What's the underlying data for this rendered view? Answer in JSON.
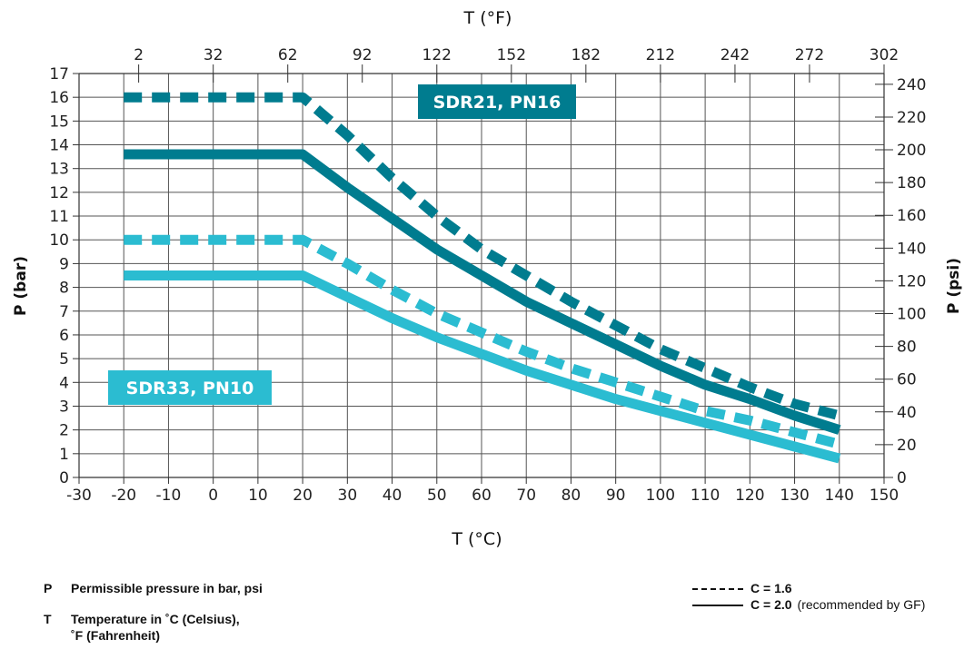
{
  "chart_data": {
    "type": "line",
    "top_axis_label": "T (°F)",
    "xlabel": "T (°C)",
    "ylabel": "P (bar)",
    "right_axis_label": "P (psi)",
    "xlim": [
      -30,
      150
    ],
    "ylim": [
      0,
      17
    ],
    "x_ticks": [
      "-30",
      "-20",
      "-10",
      "0",
      "10",
      "20",
      "30",
      "40",
      "50",
      "60",
      "70",
      "80",
      "90",
      "100",
      "110",
      "120",
      "130",
      "140",
      "150"
    ],
    "y_ticks": [
      "0",
      "1",
      "2",
      "3",
      "4",
      "5",
      "6",
      "7",
      "8",
      "9",
      "10",
      "11",
      "12",
      "13",
      "14",
      "15",
      "16",
      "17"
    ],
    "top_ticks": [
      {
        "label": "2",
        "c": -16.67
      },
      {
        "label": "32",
        "c": 0
      },
      {
        "label": "62",
        "c": 16.67
      },
      {
        "label": "92",
        "c": 33.33
      },
      {
        "label": "122",
        "c": 50
      },
      {
        "label": "152",
        "c": 66.67
      },
      {
        "label": "182",
        "c": 83.33
      },
      {
        "label": "212",
        "c": 100
      },
      {
        "label": "242",
        "c": 116.67
      },
      {
        "label": "272",
        "c": 133.33
      },
      {
        "label": "302",
        "c": 150
      }
    ],
    "right_ticks": [
      {
        "label": "0",
        "bar": 0
      },
      {
        "label": "20",
        "bar": 1.379
      },
      {
        "label": "40",
        "bar": 2.758
      },
      {
        "label": "60",
        "bar": 4.137
      },
      {
        "label": "80",
        "bar": 5.516
      },
      {
        "label": "100",
        "bar": 6.895
      },
      {
        "label": "120",
        "bar": 8.274
      },
      {
        "label": "140",
        "bar": 9.653
      },
      {
        "label": "160",
        "bar": 11.032
      },
      {
        "label": "180",
        "bar": 12.411
      },
      {
        "label": "200",
        "bar": 13.79
      },
      {
        "label": "220",
        "bar": 15.168
      },
      {
        "label": "240",
        "bar": 16.547
      }
    ],
    "grid": true,
    "series": [
      {
        "label_group": "SDR21, PN16",
        "c_factor": "C = 1.6",
        "color": "#007c8f",
        "style": "dashed",
        "points": [
          [
            -20,
            16
          ],
          [
            20,
            16
          ],
          [
            30,
            14.4
          ],
          [
            40,
            12.6
          ],
          [
            50,
            11.0
          ],
          [
            60,
            9.6
          ],
          [
            70,
            8.5
          ],
          [
            80,
            7.4
          ],
          [
            90,
            6.4
          ],
          [
            100,
            5.4
          ],
          [
            110,
            4.6
          ],
          [
            120,
            3.8
          ],
          [
            130,
            3.1
          ],
          [
            140,
            2.6
          ]
        ]
      },
      {
        "label_group": "SDR21, PN16",
        "c_factor": "C = 2.0",
        "color": "#007c8f",
        "style": "solid",
        "points": [
          [
            -20,
            13.6
          ],
          [
            20,
            13.6
          ],
          [
            30,
            12.2
          ],
          [
            40,
            10.9
          ],
          [
            50,
            9.6
          ],
          [
            60,
            8.5
          ],
          [
            70,
            7.4
          ],
          [
            80,
            6.5
          ],
          [
            90,
            5.6
          ],
          [
            100,
            4.7
          ],
          [
            110,
            3.9
          ],
          [
            120,
            3.3
          ],
          [
            130,
            2.6
          ],
          [
            140,
            2.0
          ]
        ]
      },
      {
        "label_group": "SDR33, PN10",
        "c_factor": "C = 1.6",
        "color": "#2bbcd1",
        "style": "dashed",
        "points": [
          [
            -20,
            10
          ],
          [
            20,
            10
          ],
          [
            30,
            9.0
          ],
          [
            40,
            7.9
          ],
          [
            50,
            6.9
          ],
          [
            60,
            6.1
          ],
          [
            70,
            5.3
          ],
          [
            80,
            4.6
          ],
          [
            90,
            4.0
          ],
          [
            100,
            3.4
          ],
          [
            110,
            2.8
          ],
          [
            120,
            2.4
          ],
          [
            130,
            1.9
          ],
          [
            140,
            1.4
          ]
        ]
      },
      {
        "label_group": "SDR33, PN10",
        "c_factor": "C = 2.0",
        "color": "#2bbcd1",
        "style": "solid",
        "points": [
          [
            -20,
            8.5
          ],
          [
            20,
            8.5
          ],
          [
            30,
            7.6
          ],
          [
            40,
            6.7
          ],
          [
            50,
            5.9
          ],
          [
            60,
            5.2
          ],
          [
            70,
            4.5
          ],
          [
            80,
            3.9
          ],
          [
            90,
            3.3
          ],
          [
            100,
            2.8
          ],
          [
            110,
            2.3
          ],
          [
            120,
            1.8
          ],
          [
            130,
            1.3
          ],
          [
            140,
            0.8
          ]
        ]
      }
    ],
    "annotations": [
      {
        "text": "SDR21, PN16",
        "color": "#007c8f"
      },
      {
        "text": "SDR33, PN10",
        "color": "#2bbcd1"
      }
    ]
  },
  "footnotes": [
    {
      "symbol": "P",
      "text": "Permissible pressure in bar, psi"
    },
    {
      "symbol": "T",
      "text": "Temperature in ˚C (Celsius),",
      "text2": "˚F (Fahrenheit)"
    }
  ],
  "legend": [
    {
      "style": "dashed",
      "label": "C = 1.6",
      "note": ""
    },
    {
      "style": "solid",
      "label": "C = 2.0",
      "note": "(recommended by GF)"
    }
  ]
}
